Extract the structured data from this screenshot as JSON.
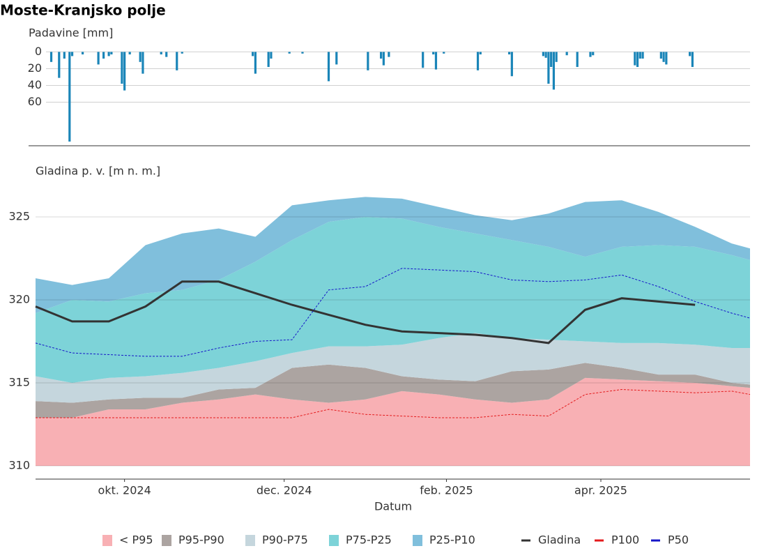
{
  "title": "Moste-Kranjsko polje",
  "chart_data": [
    {
      "type": "bar",
      "y_label": "Padavine [mm]",
      "color": "#1a85b8",
      "inverted": true,
      "grid": true,
      "xlim": [
        "2024-08-28",
        "2025-05-28"
      ],
      "ylim": [
        -7,
        112
      ],
      "yticks": [
        0,
        20,
        40,
        60
      ],
      "x": [
        "2024-09-03",
        "2024-09-06",
        "2024-09-08",
        "2024-09-10",
        "2024-09-11",
        "2024-09-15",
        "2024-09-21",
        "2024-09-23",
        "2024-09-25",
        "2024-09-26",
        "2024-09-30",
        "2024-10-01",
        "2024-10-03",
        "2024-10-07",
        "2024-10-08",
        "2024-10-15",
        "2024-10-17",
        "2024-10-21",
        "2024-10-23",
        "2024-11-19",
        "2024-11-20",
        "2024-11-25",
        "2024-11-26",
        "2024-12-03",
        "2024-12-08",
        "2024-12-18",
        "2024-12-21",
        "2025-01-02",
        "2025-01-07",
        "2025-01-08",
        "2025-01-10",
        "2025-01-23",
        "2025-01-27",
        "2025-01-28",
        "2025-01-31",
        "2025-02-13",
        "2025-02-14",
        "2025-02-25",
        "2025-02-26",
        "2025-03-10",
        "2025-03-11",
        "2025-03-12",
        "2025-03-13",
        "2025-03-14",
        "2025-03-15",
        "2025-03-19",
        "2025-03-23",
        "2025-03-28",
        "2025-03-29",
        "2025-04-14",
        "2025-04-15",
        "2025-04-16",
        "2025-04-17",
        "2025-04-24",
        "2025-04-25",
        "2025-04-26",
        "2025-05-05",
        "2025-05-06"
      ],
      "values": [
        12,
        31,
        8,
        107,
        5,
        3,
        15,
        8,
        5,
        3,
        38,
        46,
        3,
        12,
        26,
        3,
        6,
        22,
        2,
        5,
        26,
        18,
        8,
        2,
        2,
        35,
        15,
        22,
        8,
        16,
        6,
        19,
        3,
        21,
        2,
        22,
        3,
        3,
        29,
        5,
        7,
        38,
        18,
        45,
        12,
        4,
        18,
        6,
        4,
        16,
        18,
        8,
        8,
        8,
        12,
        15,
        5,
        18
      ]
    },
    {
      "type": "area",
      "y_label": "Gladina p. v. [m n. m.]",
      "x_label": "Datum",
      "grid": true,
      "baseline": 310,
      "xlim": [
        "2024-08-28",
        "2025-05-28"
      ],
      "xticks": [
        {
          "value": "2024-10-01",
          "label": "okt. 2024"
        },
        {
          "value": "2024-12-01",
          "label": "dec. 2024"
        },
        {
          "value": "2025-02-01",
          "label": "feb. 2025"
        },
        {
          "value": "2025-04-01",
          "label": "apr. 2025"
        }
      ],
      "ylim": [
        309.2,
        327.5
      ],
      "yticks": [
        310,
        315,
        320,
        325
      ],
      "x": [
        "2024-08-28",
        "2024-09-11",
        "2024-09-25",
        "2024-10-09",
        "2024-10-23",
        "2024-11-06",
        "2024-11-20",
        "2024-12-04",
        "2024-12-18",
        "2025-01-01",
        "2025-01-15",
        "2025-01-29",
        "2025-02-12",
        "2025-02-26",
        "2025-03-12",
        "2025-03-26",
        "2025-04-09",
        "2025-04-23",
        "2025-05-07",
        "2025-05-21",
        "2025-05-28"
      ],
      "series": [
        {
          "name": "< P95",
          "color": "#f8b0b4",
          "stacked": true,
          "values": [
            2.9,
            2.9,
            3.4,
            3.4,
            3.8,
            4.0,
            4.3,
            4.0,
            3.8,
            4.0,
            4.5,
            4.3,
            4.0,
            3.8,
            4.0,
            5.3,
            5.2,
            5.1,
            5.0,
            4.8,
            4.7
          ]
        },
        {
          "name": "P95-P90",
          "color": "#aca4a1",
          "stacked": true,
          "values": [
            1.0,
            0.9,
            0.6,
            0.7,
            0.3,
            0.6,
            0.4,
            1.9,
            2.3,
            1.9,
            0.9,
            0.9,
            1.1,
            1.9,
            1.8,
            0.9,
            0.7,
            0.4,
            0.5,
            0.2,
            0.2
          ]
        },
        {
          "name": "P90-P75",
          "color": "#c5d6dd",
          "stacked": true,
          "values": [
            1.5,
            1.2,
            1.3,
            1.3,
            1.5,
            1.3,
            1.6,
            0.9,
            1.1,
            1.3,
            1.9,
            2.5,
            2.9,
            2.0,
            1.8,
            1.3,
            1.5,
            1.9,
            1.8,
            2.1,
            2.2
          ]
        },
        {
          "name": "P75-P25",
          "color": "#7dd3d8",
          "stacked": true,
          "values": [
            3.8,
            5.0,
            4.6,
            5.0,
            5.0,
            5.3,
            6.0,
            6.8,
            7.5,
            7.8,
            7.6,
            6.7,
            6.0,
            5.9,
            5.6,
            5.1,
            5.8,
            5.9,
            5.9,
            5.6,
            5.3
          ]
        },
        {
          "name": "P25-P10",
          "color": "#80bfdc",
          "stacked": true,
          "values": [
            2.1,
            0.9,
            1.4,
            2.9,
            3.4,
            3.1,
            1.5,
            2.1,
            1.3,
            1.2,
            1.2,
            1.2,
            1.1,
            1.2,
            2.0,
            3.3,
            2.8,
            2.0,
            1.2,
            0.7,
            0.7
          ]
        },
        {
          "name": "Gladina",
          "color": "#333333",
          "values": [
            319.6,
            318.7,
            318.7,
            319.6,
            321.1,
            321.1,
            320.4,
            319.7,
            319.1,
            318.5,
            318.1,
            318.0,
            317.9,
            317.7,
            317.4,
            319.4,
            320.1,
            319.9,
            319.7,
            null,
            null
          ]
        },
        {
          "name": "P100",
          "color": "#e41a1c",
          "dashed": true,
          "values": [
            312.9,
            312.9,
            312.9,
            312.9,
            312.9,
            312.9,
            312.9,
            312.9,
            313.4,
            313.1,
            313.0,
            312.9,
            312.9,
            313.1,
            313.0,
            314.3,
            314.6,
            314.5,
            314.4,
            314.5,
            314.3
          ]
        },
        {
          "name": "P50",
          "color": "#1515c8",
          "dashed": true,
          "values": [
            317.4,
            316.8,
            316.7,
            316.6,
            316.6,
            317.1,
            317.5,
            317.6,
            320.6,
            320.8,
            321.9,
            321.8,
            321.7,
            321.2,
            321.1,
            321.2,
            321.5,
            320.8,
            319.9,
            319.2,
            318.9
          ]
        }
      ]
    }
  ]
}
